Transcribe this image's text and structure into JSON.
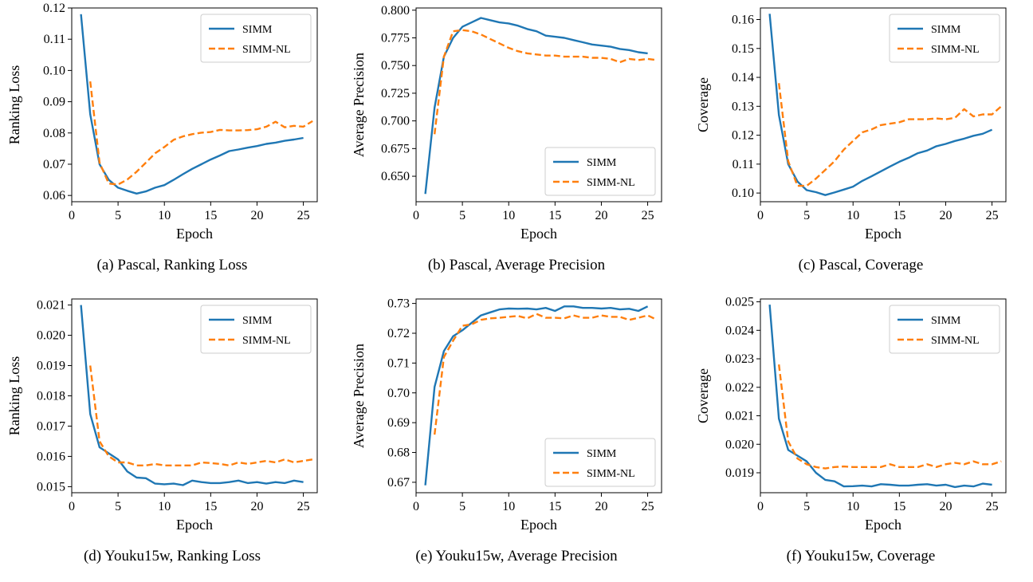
{
  "series_colors": {
    "SIMM": "#1f77b4",
    "SIMM-NL": "#ff7f0e"
  },
  "chart_data": [
    {
      "type": "line",
      "caption": "(a) Pascal, Ranking Loss",
      "xlabel": "Epoch",
      "ylabel": "Ranking Loss",
      "xlim": [
        0,
        26.5
      ],
      "ylim": [
        0.058,
        0.12
      ],
      "xticks": [
        0,
        5,
        10,
        15,
        20,
        25
      ],
      "yticks": [
        0.06,
        0.07,
        0.08,
        0.09,
        0.1,
        0.11,
        0.12
      ],
      "ytick_labels": [
        "0.06",
        "0.07",
        "0.08",
        "0.09",
        "0.10",
        "0.11",
        "0.12"
      ],
      "legend_loc": "upper-right",
      "series": [
        {
          "name": "SIMM",
          "x": [
            1,
            2,
            3,
            4,
            5,
            6,
            7,
            8,
            9,
            10,
            11,
            12,
            13,
            14,
            15,
            16,
            17,
            18,
            19,
            20,
            21,
            22,
            23,
            24,
            25
          ],
          "values": [
            0.118,
            0.086,
            0.07,
            0.065,
            0.0625,
            0.0615,
            0.0606,
            0.0613,
            0.0625,
            0.0633,
            0.065,
            0.0668,
            0.0685,
            0.07,
            0.0715,
            0.0728,
            0.0742,
            0.0747,
            0.0753,
            0.0758,
            0.0765,
            0.0769,
            0.0775,
            0.0779,
            0.0784
          ]
        },
        {
          "name": "SIMM-NL",
          "x": [
            2,
            3,
            4,
            5,
            6,
            7,
            8,
            9,
            10,
            11,
            12,
            13,
            14,
            15,
            16,
            17,
            18,
            19,
            20,
            21,
            22,
            23,
            24,
            25,
            26
          ],
          "values": [
            0.0965,
            0.0705,
            0.0638,
            0.0635,
            0.0651,
            0.0676,
            0.0705,
            0.0735,
            0.0755,
            0.0778,
            0.0789,
            0.0796,
            0.0801,
            0.0803,
            0.081,
            0.0808,
            0.0808,
            0.0809,
            0.0812,
            0.082,
            0.0836,
            0.0818,
            0.0823,
            0.082,
            0.0838
          ]
        }
      ]
    },
    {
      "type": "line",
      "caption": "(b) Pascal, Average Precision",
      "xlabel": "Epoch",
      "ylabel": "Average Precision",
      "xlim": [
        0,
        26.5
      ],
      "ylim": [
        0.627,
        0.802
      ],
      "xticks": [
        0,
        5,
        10,
        15,
        20,
        25
      ],
      "yticks": [
        0.65,
        0.675,
        0.7,
        0.725,
        0.75,
        0.775,
        0.8
      ],
      "ytick_labels": [
        "0.650",
        "0.675",
        "0.700",
        "0.725",
        "0.750",
        "0.775",
        "0.800"
      ],
      "legend_loc": "lower-right",
      "series": [
        {
          "name": "SIMM",
          "x": [
            1,
            2,
            3,
            4,
            5,
            6,
            7,
            8,
            9,
            10,
            11,
            12,
            13,
            14,
            15,
            16,
            17,
            18,
            19,
            20,
            21,
            22,
            23,
            24,
            25
          ],
          "values": [
            0.634,
            0.712,
            0.758,
            0.775,
            0.785,
            0.789,
            0.793,
            0.791,
            0.789,
            0.788,
            0.786,
            0.783,
            0.781,
            0.777,
            0.776,
            0.775,
            0.773,
            0.771,
            0.769,
            0.768,
            0.767,
            0.765,
            0.764,
            0.762,
            0.761
          ]
        },
        {
          "name": "SIMM-NL",
          "x": [
            2,
            3,
            4,
            5,
            6,
            7,
            8,
            9,
            10,
            11,
            12,
            13,
            14,
            15,
            16,
            17,
            18,
            19,
            20,
            21,
            22,
            23,
            24,
            25,
            26
          ],
          "values": [
            0.688,
            0.758,
            0.781,
            0.782,
            0.781,
            0.778,
            0.774,
            0.77,
            0.766,
            0.763,
            0.761,
            0.76,
            0.759,
            0.759,
            0.758,
            0.758,
            0.758,
            0.757,
            0.757,
            0.756,
            0.753,
            0.756,
            0.755,
            0.756,
            0.755
          ]
        }
      ]
    },
    {
      "type": "line",
      "caption": "(c) Pascal, Coverage",
      "xlabel": "Epoch",
      "ylabel": "Coverage",
      "xlim": [
        0,
        26.5
      ],
      "ylim": [
        0.097,
        0.164
      ],
      "xticks": [
        0,
        5,
        10,
        15,
        20,
        25
      ],
      "yticks": [
        0.1,
        0.11,
        0.12,
        0.13,
        0.14,
        0.15,
        0.16
      ],
      "ytick_labels": [
        "0.10",
        "0.11",
        "0.12",
        "0.13",
        "0.14",
        "0.15",
        "0.16"
      ],
      "legend_loc": "upper-right",
      "series": [
        {
          "name": "SIMM",
          "x": [
            1,
            2,
            3,
            4,
            5,
            6,
            7,
            8,
            9,
            10,
            11,
            12,
            13,
            14,
            15,
            16,
            17,
            18,
            19,
            20,
            21,
            22,
            23,
            24,
            25
          ],
          "values": [
            0.162,
            0.127,
            0.11,
            0.104,
            0.101,
            0.1003,
            0.0993,
            0.1002,
            0.1012,
            0.1022,
            0.1042,
            0.1058,
            0.1075,
            0.1092,
            0.1108,
            0.1122,
            0.1138,
            0.1147,
            0.1162,
            0.117,
            0.118,
            0.1188,
            0.1198,
            0.1205,
            0.1219
          ]
        },
        {
          "name": "SIMM-NL",
          "x": [
            2,
            3,
            4,
            5,
            6,
            7,
            8,
            9,
            10,
            11,
            12,
            13,
            14,
            15,
            16,
            17,
            18,
            19,
            20,
            21,
            22,
            23,
            24,
            25,
            26
          ],
          "values": [
            0.138,
            0.111,
            0.1025,
            0.1025,
            0.105,
            0.108,
            0.111,
            0.115,
            0.118,
            0.121,
            0.122,
            0.1235,
            0.124,
            0.1245,
            0.1255,
            0.1255,
            0.1255,
            0.1258,
            0.1255,
            0.126,
            0.129,
            0.1265,
            0.1272,
            0.1272,
            0.13
          ]
        }
      ]
    },
    {
      "type": "line",
      "caption": "(d) Youku15w, Ranking Loss",
      "xlabel": "Epoch",
      "ylabel": "Ranking Loss",
      "xlim": [
        0,
        26.5
      ],
      "ylim": [
        0.0148,
        0.0212
      ],
      "xticks": [
        0,
        5,
        10,
        15,
        20,
        25
      ],
      "yticks": [
        0.015,
        0.016,
        0.017,
        0.018,
        0.019,
        0.02,
        0.021
      ],
      "ytick_labels": [
        "0.015",
        "0.016",
        "0.017",
        "0.018",
        "0.019",
        "0.020",
        "0.021"
      ],
      "legend_loc": "upper-right",
      "series": [
        {
          "name": "SIMM",
          "x": [
            1,
            2,
            3,
            4,
            5,
            6,
            7,
            8,
            9,
            10,
            11,
            12,
            13,
            14,
            15,
            16,
            17,
            18,
            19,
            20,
            21,
            22,
            23,
            24,
            25
          ],
          "values": [
            0.021,
            0.0174,
            0.0163,
            0.0161,
            0.0159,
            0.0155,
            0.0153,
            0.01528,
            0.0151,
            0.01508,
            0.0151,
            0.01505,
            0.0152,
            0.01515,
            0.01512,
            0.01512,
            0.01515,
            0.0152,
            0.01512,
            0.01515,
            0.0151,
            0.01515,
            0.01512,
            0.0152,
            0.01515
          ]
        },
        {
          "name": "SIMM-NL",
          "x": [
            2,
            3,
            4,
            5,
            6,
            7,
            8,
            9,
            10,
            11,
            12,
            13,
            14,
            15,
            16,
            17,
            18,
            19,
            20,
            21,
            22,
            23,
            24,
            25,
            26
          ],
          "values": [
            0.019,
            0.0165,
            0.016,
            0.0158,
            0.0158,
            0.0157,
            0.0157,
            0.01575,
            0.0157,
            0.0157,
            0.0157,
            0.0157,
            0.0158,
            0.01578,
            0.01575,
            0.0157,
            0.0158,
            0.01575,
            0.0158,
            0.01585,
            0.0158,
            0.0159,
            0.0158,
            0.01585,
            0.0159
          ]
        }
      ]
    },
    {
      "type": "line",
      "caption": "(e) Youku15w, Average Precision",
      "xlabel": "Epoch",
      "ylabel": "Average Precision",
      "xlim": [
        0,
        26.5
      ],
      "ylim": [
        0.6665,
        0.7315
      ],
      "xticks": [
        0,
        5,
        10,
        15,
        20,
        25
      ],
      "yticks": [
        0.67,
        0.68,
        0.69,
        0.7,
        0.71,
        0.72,
        0.73
      ],
      "ytick_labels": [
        "0.67",
        "0.68",
        "0.69",
        "0.70",
        "0.71",
        "0.72",
        "0.73"
      ],
      "legend_loc": "lower-right",
      "series": [
        {
          "name": "SIMM",
          "x": [
            1,
            2,
            3,
            4,
            5,
            6,
            7,
            8,
            9,
            10,
            11,
            12,
            13,
            14,
            15,
            16,
            17,
            18,
            19,
            20,
            21,
            22,
            23,
            24,
            25
          ],
          "values": [
            0.669,
            0.702,
            0.714,
            0.719,
            0.721,
            0.7235,
            0.726,
            0.727,
            0.728,
            0.7283,
            0.7282,
            0.7283,
            0.728,
            0.7285,
            0.7275,
            0.729,
            0.729,
            0.7285,
            0.7285,
            0.7283,
            0.7285,
            0.728,
            0.7282,
            0.7275,
            0.729
          ]
        },
        {
          "name": "SIMM-NL",
          "x": [
            2,
            3,
            4,
            5,
            6,
            7,
            8,
            9,
            10,
            11,
            12,
            13,
            14,
            15,
            16,
            17,
            18,
            19,
            20,
            21,
            22,
            23,
            24,
            25,
            26
          ],
          "values": [
            0.686,
            0.712,
            0.7175,
            0.7225,
            0.723,
            0.7245,
            0.725,
            0.7252,
            0.7255,
            0.7258,
            0.725,
            0.7265,
            0.7252,
            0.7252,
            0.725,
            0.726,
            0.7252,
            0.7252,
            0.726,
            0.7255,
            0.7255,
            0.7245,
            0.7252,
            0.726,
            0.7245
          ]
        }
      ]
    },
    {
      "type": "line",
      "caption": "(f) Youku15w, Coverage",
      "xlabel": "Epoch",
      "ylabel": "Coverage",
      "xlim": [
        0,
        26.5
      ],
      "ylim": [
        0.0183,
        0.0251
      ],
      "xticks": [
        0,
        5,
        10,
        15,
        20,
        25
      ],
      "yticks": [
        0.019,
        0.02,
        0.021,
        0.022,
        0.023,
        0.024,
        0.025
      ],
      "ytick_labels": [
        "0.019",
        "0.020",
        "0.021",
        "0.022",
        "0.023",
        "0.024",
        "0.025"
      ],
      "legend_loc": "upper-right",
      "series": [
        {
          "name": "SIMM",
          "x": [
            1,
            2,
            3,
            4,
            5,
            6,
            7,
            8,
            9,
            10,
            11,
            12,
            13,
            14,
            15,
            16,
            17,
            18,
            19,
            20,
            21,
            22,
            23,
            24,
            25
          ],
          "values": [
            0.0249,
            0.0209,
            0.0198,
            0.0196,
            0.0194,
            0.019,
            0.01875,
            0.0187,
            0.01852,
            0.01853,
            0.01855,
            0.01852,
            0.0186,
            0.01858,
            0.01855,
            0.01855,
            0.01858,
            0.0186,
            0.01855,
            0.01858,
            0.0185,
            0.01855,
            0.01852,
            0.01862,
            0.01858
          ]
        },
        {
          "name": "SIMM-NL",
          "x": [
            2,
            3,
            4,
            5,
            6,
            7,
            8,
            9,
            10,
            11,
            12,
            13,
            14,
            15,
            16,
            17,
            18,
            19,
            20,
            21,
            22,
            23,
            24,
            25,
            26
          ],
          "values": [
            0.0228,
            0.0201,
            0.0195,
            0.0193,
            0.0192,
            0.01915,
            0.0192,
            0.01922,
            0.0192,
            0.0192,
            0.0192,
            0.0192,
            0.0193,
            0.0192,
            0.0192,
            0.0192,
            0.0193,
            0.0192,
            0.0193,
            0.01935,
            0.0193,
            0.0194,
            0.0193,
            0.0193,
            0.0194
          ]
        }
      ]
    }
  ]
}
